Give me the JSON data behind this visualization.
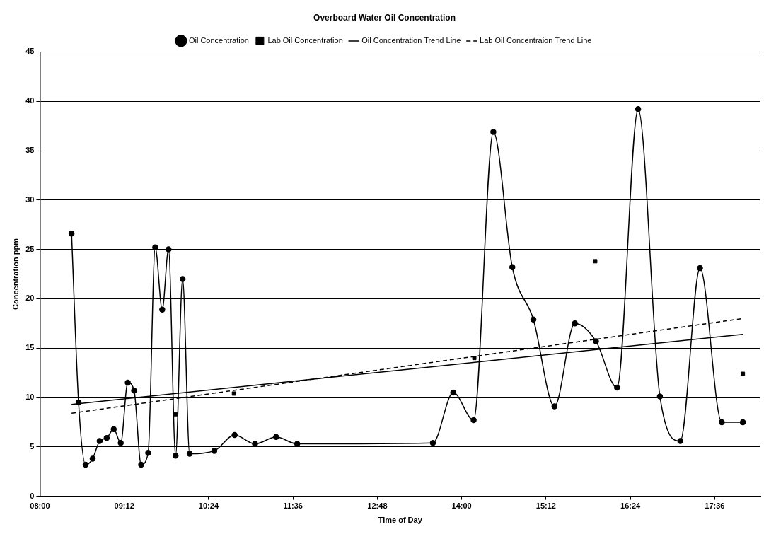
{
  "chart_data": {
    "type": "line",
    "title": "Overboard Water Oil Concentration",
    "xlabel": "Time of Day",
    "ylabel": "Concentration ppm",
    "xlim": [
      8,
      18.25
    ],
    "xticks": [
      {
        "value": 8,
        "label": "08:00"
      },
      {
        "value": 9.2,
        "label": "09:12"
      },
      {
        "value": 10.4,
        "label": "10:24"
      },
      {
        "value": 11.6,
        "label": "11:36"
      },
      {
        "value": 12.8,
        "label": "12:48"
      },
      {
        "value": 14,
        "label": "14:00"
      },
      {
        "value": 15.2,
        "label": "15:12"
      },
      {
        "value": 16.4,
        "label": "16:24"
      },
      {
        "value": 17.6,
        "label": "17:36"
      }
    ],
    "ylim": [
      0,
      45
    ],
    "yticks": [
      0,
      5,
      10,
      15,
      20,
      25,
      30,
      35,
      40,
      45
    ],
    "grid": "y",
    "legend": "top",
    "series": [
      {
        "name": "Oil Concentration",
        "type": "line",
        "color": "#000000",
        "marker": "circle",
        "line_style": "solid",
        "x": [
          8.45,
          8.55,
          8.65,
          8.75,
          8.85,
          8.95,
          9.05,
          9.15,
          9.25,
          9.34,
          9.44,
          9.54,
          9.64,
          9.74,
          9.83,
          9.93,
          10.03,
          10.13,
          10.48,
          10.77,
          11.06,
          11.36,
          11.66,
          13.59,
          13.88,
          14.17,
          14.45,
          14.72,
          15.02,
          15.32,
          15.61,
          15.91,
          16.21,
          16.51,
          16.82,
          17.11,
          17.39,
          17.7,
          18.0
        ],
        "values": [
          26.6,
          9.5,
          3.2,
          3.8,
          5.6,
          5.9,
          6.8,
          5.4,
          11.5,
          10.7,
          3.2,
          4.4,
          25.2,
          18.9,
          25.0,
          4.1,
          22.0,
          4.3,
          4.6,
          6.2,
          5.3,
          6.0,
          5.3,
          5.4,
          10.5,
          7.7,
          36.9,
          23.2,
          17.9,
          9.1,
          17.5,
          15.7,
          11.0,
          39.2,
          10.1,
          5.6,
          23.1,
          7.5,
          7.5
        ]
      },
      {
        "name": "Lab Oil Concentration",
        "type": "scatter",
        "color": "#000000",
        "marker": "square",
        "x": [
          9.93,
          10.76,
          14.18,
          15.9,
          18.0
        ],
        "values": [
          8.3,
          10.4,
          14.0,
          23.8,
          12.4
        ]
      },
      {
        "name": "Oil Concentration Trend Line",
        "type": "line",
        "color": "#000000",
        "marker": "none",
        "line_style": "solid",
        "x": [
          8.45,
          18.0
        ],
        "values": [
          9.3,
          16.4
        ]
      },
      {
        "name": "Lab Oil Concentraion Trend Line",
        "type": "line",
        "color": "#000000",
        "marker": "none",
        "line_style": "dashed",
        "x": [
          8.45,
          18.0
        ],
        "values": [
          8.4,
          18.0
        ]
      }
    ]
  }
}
